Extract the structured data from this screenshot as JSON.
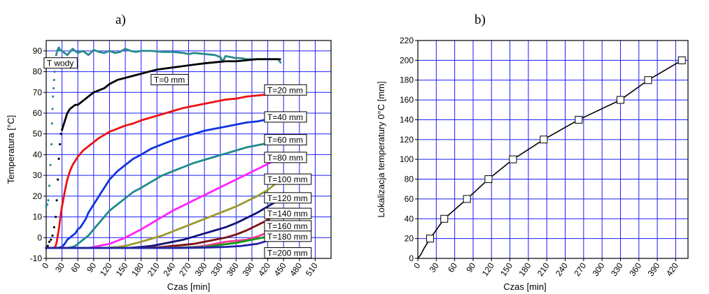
{
  "panels": {
    "a_label": "a)",
    "b_label": "b)"
  },
  "colors": {
    "grid": "#1c1cff",
    "frame": "#000000",
    "T_wody": "#2a8c8c",
    "T=0 mm": "#000000",
    "T=20 mm": "#ee1111",
    "T=40 mm": "#1133dd",
    "T=60 mm": "#1f8a8a",
    "T=80 mm": "#ff22ff",
    "T=100 mm": "#9a9a2a",
    "T=120 mm": "#111177",
    "T=140 mm": "#7a1010",
    "T=160 mm": "#ff3399",
    "T=180 mm": "#119911",
    "T=200 mm": "#2222aa"
  },
  "chart_data": [
    {
      "id": "a",
      "type": "line",
      "title": "",
      "xlabel": "Czas [min]",
      "ylabel": "Temperatura [°C]",
      "xlim": [
        0,
        540
      ],
      "ylim": [
        -10,
        95
      ],
      "x_ticks": [
        "0",
        "30",
        "60",
        "90",
        "120",
        "150",
        "180",
        "210",
        "240",
        "270",
        "300",
        "330",
        "360",
        "390",
        "420",
        "450",
        "480",
        "510"
      ],
      "y_ticks": [
        "-10",
        "0",
        "10",
        "20",
        "30",
        "40",
        "50",
        "60",
        "70",
        "80",
        "90"
      ],
      "grid": true,
      "series": [
        {
          "name": "T wody",
          "style": "dots",
          "x": [
            0,
            2,
            4,
            6,
            8,
            10,
            11,
            12,
            13,
            14,
            15,
            16,
            17,
            18,
            19,
            20,
            21,
            22,
            23,
            24,
            25,
            26
          ],
          "y": [
            15,
            16,
            18,
            25,
            35,
            45,
            55,
            62,
            68,
            72,
            76,
            80,
            84,
            86,
            88,
            89,
            90,
            90.5,
            91,
            91.5,
            91,
            90.5
          ]
        },
        {
          "name": "T wody",
          "style": "line",
          "x": [
            22,
            30,
            40,
            50,
            60,
            70,
            80,
            90,
            100,
            110,
            120,
            130,
            140,
            150,
            160,
            170,
            180,
            200,
            220,
            240,
            260,
            270,
            280,
            300,
            320,
            330,
            335,
            340,
            350,
            360,
            370,
            380,
            390,
            400,
            410,
            420,
            430,
            440,
            445
          ],
          "y": [
            91,
            90,
            88,
            91,
            89,
            90,
            88,
            90.5,
            89.5,
            89,
            90,
            89,
            89.5,
            91,
            90,
            89.5,
            90,
            90,
            89.5,
            89.5,
            89,
            88.5,
            89,
            88.5,
            88,
            87,
            85,
            87.5,
            87,
            86.5,
            86.5,
            86,
            86,
            86,
            86,
            86,
            86,
            86,
            84
          ]
        },
        {
          "name": "T=0 mm",
          "style": "dots",
          "x": [
            0,
            3,
            6,
            9,
            12,
            15,
            18,
            20,
            22,
            24,
            26,
            28,
            30
          ],
          "y": [
            -5,
            -4,
            -2,
            -1,
            1,
            5,
            10,
            18,
            28,
            38,
            45,
            50,
            52
          ]
        },
        {
          "name": "T=0 mm",
          "style": "line",
          "x": [
            30,
            35,
            40,
            45,
            50,
            55,
            60,
            70,
            80,
            90,
            100,
            110,
            120,
            135,
            150,
            165,
            180,
            195,
            210,
            225,
            240,
            255,
            270,
            285,
            300,
            320,
            340,
            360,
            380,
            400,
            420,
            440,
            445
          ],
          "y": [
            52,
            56,
            60,
            62,
            63,
            64,
            64,
            66,
            68,
            70,
            71,
            72,
            74,
            76,
            77,
            78,
            79,
            80,
            81,
            81.5,
            82,
            82.5,
            83,
            83.5,
            84,
            84.5,
            85,
            85,
            85.5,
            86,
            86,
            86,
            86
          ]
        },
        {
          "name": "T=20 mm",
          "style": "line",
          "x": [
            0,
            10,
            15,
            18,
            20,
            22,
            24,
            26,
            28,
            30,
            35,
            40,
            45,
            50,
            55,
            60,
            70,
            80,
            90,
            100,
            110,
            120,
            135,
            150,
            165,
            180,
            200,
            220,
            240,
            260,
            280,
            300,
            320,
            340,
            360,
            380,
            400,
            420,
            440
          ],
          "y": [
            -5,
            -5,
            -4.8,
            -4,
            -2,
            1,
            4,
            8,
            12,
            15,
            22,
            28,
            32,
            35,
            37,
            39,
            42,
            44,
            46,
            48,
            49.5,
            51,
            52.5,
            54,
            55,
            56.5,
            58,
            59.5,
            61,
            62.5,
            63.5,
            64.5,
            65.5,
            66.5,
            67,
            68,
            68.5,
            69,
            69.5
          ]
        },
        {
          "name": "T=40 mm",
          "style": "line",
          "x": [
            0,
            20,
            30,
            35,
            40,
            45,
            50,
            55,
            60,
            65,
            70,
            75,
            80,
            90,
            100,
            110,
            120,
            135,
            150,
            165,
            180,
            200,
            220,
            240,
            260,
            280,
            300,
            320,
            340,
            360,
            380,
            400,
            420,
            440
          ],
          "y": [
            -5,
            -5,
            -4.5,
            -3,
            -1,
            0,
            1,
            2,
            4,
            5,
            7,
            9,
            12,
            16,
            20,
            24,
            28,
            32,
            35,
            38,
            40,
            43,
            45,
            47,
            48.5,
            50,
            51.5,
            52.5,
            53.5,
            54.5,
            55.5,
            56,
            57,
            57.5
          ]
        },
        {
          "name": "T=60 mm",
          "style": "line",
          "x": [
            0,
            40,
            50,
            55,
            60,
            70,
            80,
            90,
            100,
            110,
            120,
            135,
            150,
            165,
            180,
            200,
            220,
            240,
            260,
            280,
            300,
            320,
            340,
            360,
            380,
            400,
            420,
            440
          ],
          "y": [
            -5,
            -5,
            -4.5,
            -4,
            -3,
            -1,
            1,
            4,
            7,
            10,
            13,
            16,
            19,
            22,
            24,
            27,
            30,
            32,
            34,
            36,
            37.5,
            39,
            40.5,
            42,
            43.5,
            44.5,
            45.5,
            46.5
          ]
        },
        {
          "name": "T=80 mm",
          "style": "line",
          "x": [
            0,
            80,
            90,
            100,
            110,
            120,
            135,
            150,
            165,
            180,
            200,
            220,
            240,
            260,
            280,
            300,
            320,
            340,
            360,
            380,
            400,
            420,
            440
          ],
          "y": [
            -5,
            -5,
            -4.5,
            -4,
            -3.5,
            -3,
            -1.5,
            0,
            2,
            4,
            7,
            10,
            13,
            15.5,
            18,
            20.5,
            23,
            25.5,
            28,
            30.5,
            33,
            35.5,
            38
          ]
        },
        {
          "name": "T=100 mm",
          "style": "line",
          "x": [
            0,
            110,
            120,
            135,
            150,
            165,
            180,
            200,
            220,
            240,
            260,
            280,
            300,
            320,
            340,
            360,
            380,
            400,
            420,
            440
          ],
          "y": [
            -5,
            -5,
            -4.8,
            -4.5,
            -4,
            -3,
            -2,
            -0.5,
            1,
            3,
            5,
            7,
            9,
            11,
            13,
            15,
            17.5,
            20,
            23,
            27
          ]
        },
        {
          "name": "T=120 mm",
          "style": "line",
          "x": [
            0,
            150,
            165,
            180,
            200,
            220,
            240,
            260,
            280,
            300,
            320,
            340,
            360,
            380,
            400,
            420,
            440
          ],
          "y": [
            -5,
            -5,
            -4.8,
            -4.5,
            -4,
            -3,
            -2,
            -1,
            0.5,
            2,
            3.5,
            5,
            7,
            9.5,
            12,
            15,
            18
          ]
        },
        {
          "name": "T=140 mm",
          "style": "line",
          "x": [
            0,
            180,
            200,
            220,
            240,
            260,
            280,
            300,
            320,
            340,
            360,
            380,
            400,
            420,
            440
          ],
          "y": [
            -5,
            -5,
            -4.8,
            -4.5,
            -4,
            -3.5,
            -3,
            -2,
            -1,
            0,
            1.5,
            3.5,
            6,
            8.5,
            12
          ]
        },
        {
          "name": "T=160 mm",
          "style": "line",
          "x": [
            0,
            200,
            240,
            280,
            300,
            320,
            340,
            360,
            380,
            400,
            420,
            440
          ],
          "y": [
            -5,
            -5,
            -4.8,
            -4.5,
            -4,
            -3,
            -2,
            -1.5,
            -1,
            0.5,
            2.5,
            5
          ]
        },
        {
          "name": "T=180 mm",
          "style": "line",
          "x": [
            0,
            220,
            260,
            300,
            330,
            360,
            380,
            400,
            420,
            440
          ],
          "y": [
            -5,
            -5,
            -4.8,
            -4.5,
            -3.5,
            -2.5,
            -1.5,
            -0.5,
            0.5,
            2.5
          ]
        },
        {
          "name": "T=200 mm",
          "style": "line",
          "x": [
            0,
            250,
            300,
            340,
            370,
            400,
            420,
            440
          ],
          "y": [
            -5,
            -5,
            -4.8,
            -4.5,
            -4,
            -3,
            -1.5,
            0
          ]
        }
      ],
      "annotations": [
        {
          "text": "T wody",
          "x": 37,
          "y": 84
        },
        {
          "text": "T=0 mm",
          "x": 240,
          "y": 76
        },
        {
          "text": "T=20 mm",
          "x": 455,
          "y": 71
        },
        {
          "text": "T=40 mm",
          "x": 455,
          "y": 58
        },
        {
          "text": "T=60 mm",
          "x": 455,
          "y": 47
        },
        {
          "text": "T=80 mm",
          "x": 455,
          "y": 38.5
        },
        {
          "text": "T=100 mm",
          "x": 455,
          "y": 28
        },
        {
          "text": "T=120 mm",
          "x": 455,
          "y": 19
        },
        {
          "text": "T=140 mm",
          "x": 455,
          "y": 11.5
        },
        {
          "text": "T=160 mm",
          "x": 455,
          "y": 5.5
        },
        {
          "text": "T=180 mm",
          "x": 455,
          "y": 0.5
        },
        {
          "text": "T=200 mm",
          "x": 455,
          "y": -7.5
        }
      ]
    },
    {
      "id": "b",
      "type": "line",
      "title": "",
      "xlabel": "Czas [min]",
      "ylabel": "Lokalizacja temperatury 0°C [mm]",
      "xlim": [
        0,
        440
      ],
      "ylim": [
        0,
        220
      ],
      "x_ticks": [
        "0",
        "30",
        "60",
        "90",
        "120",
        "150",
        "180",
        "210",
        "240",
        "270",
        "300",
        "330",
        "360",
        "390",
        "420"
      ],
      "y_ticks": [
        "0",
        "20",
        "40",
        "60",
        "80",
        "100",
        "120",
        "140",
        "160",
        "180",
        "200",
        "220"
      ],
      "grid": true,
      "series": [
        {
          "name": "",
          "style": "line-square-markers",
          "x": [
            0,
            5,
            10,
            15,
            20,
            43,
            80,
            115,
            155,
            205,
            262,
            330,
            375,
            430
          ],
          "y": [
            0,
            4,
            10,
            15,
            20,
            40,
            60,
            80,
            100,
            120,
            140,
            160,
            180,
            200
          ],
          "marker_index": [
            4,
            5,
            6,
            7,
            8,
            9,
            10,
            11,
            12,
            13
          ]
        }
      ]
    }
  ]
}
